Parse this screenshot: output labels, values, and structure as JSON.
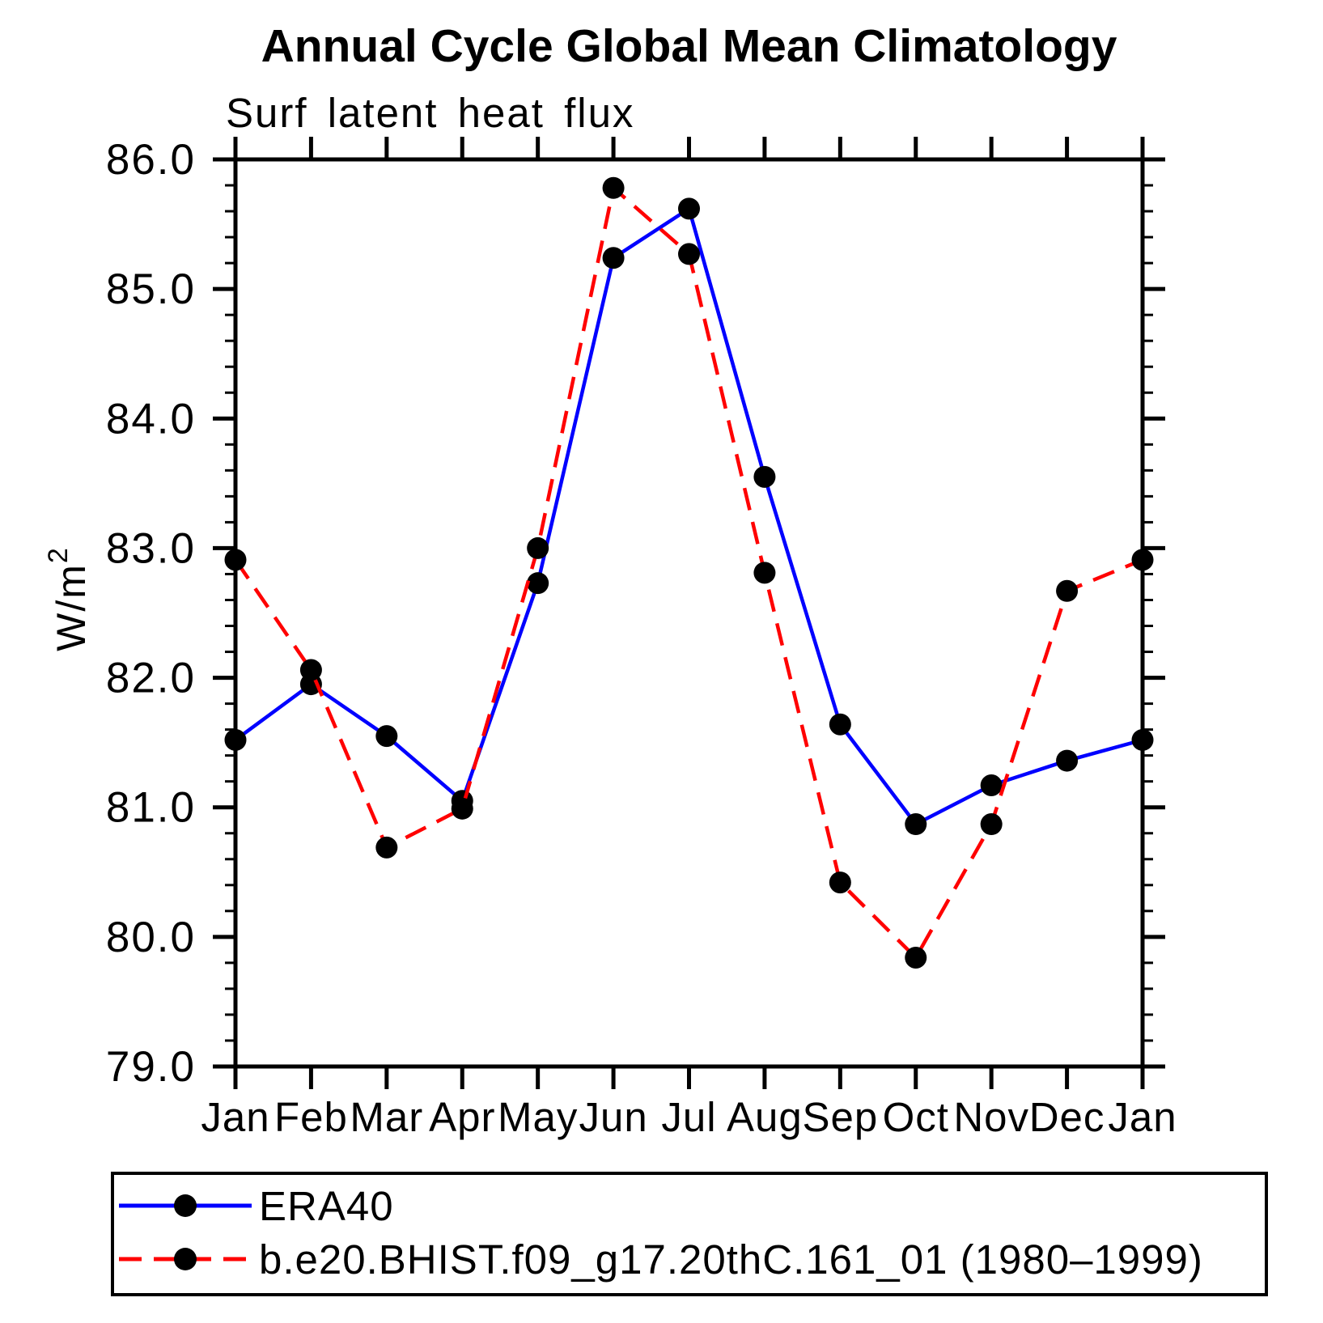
{
  "figure": {
    "title": "Annual Cycle Global Mean Climatology",
    "subtitle": "Surf latent heat flux"
  },
  "chart_data": {
    "type": "line",
    "title": "Annual Cycle Global Mean Climatology",
    "subtitle": "Surf latent heat flux",
    "xlabel": "",
    "ylabel": "W/m^2",
    "ylabel_display": {
      "base": "W/m",
      "exponent": "2"
    },
    "categories": [
      "Jan",
      "Feb",
      "Mar",
      "Apr",
      "May",
      "Jun",
      "Jul",
      "Aug",
      "Sep",
      "Oct",
      "Nov",
      "Dec",
      "Jan"
    ],
    "series": [
      {
        "name": "ERA40",
        "color": "#0000ff",
        "line_style": "solid",
        "marker": "filled-circle",
        "marker_color": "#000000",
        "values": [
          81.52,
          81.95,
          81.55,
          81.05,
          82.73,
          85.24,
          85.62,
          83.55,
          81.64,
          80.87,
          81.17,
          81.36,
          81.52
        ]
      },
      {
        "name": "b.e20.BHIST.f09_g17.20thC.161_01 (1980–1999)",
        "color": "#ff0000",
        "line_style": "dashed",
        "marker": "filled-circle",
        "marker_color": "#000000",
        "values": [
          82.91,
          82.06,
          80.69,
          80.99,
          83.0,
          85.78,
          85.27,
          82.81,
          80.42,
          79.84,
          80.87,
          82.67,
          82.91
        ]
      }
    ],
    "ylim": [
      79.0,
      86.0
    ],
    "ytick_major_interval": 1.0,
    "ytick_minor_interval": 0.2,
    "ytick_labels": [
      "79.0",
      "80.0",
      "81.0",
      "82.0",
      "83.0",
      "84.0",
      "85.0",
      "86.0"
    ],
    "grid": false,
    "legend_position": "bottom-left"
  }
}
